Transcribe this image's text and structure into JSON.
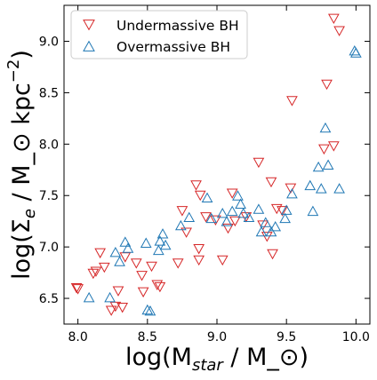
{
  "chart_data": {
    "type": "scatter",
    "title": "",
    "xlabel": "log(M_star / M_⊙)",
    "ylabel": "log(Σ_e / M_⊙ kpc^-2)",
    "xlim": [
      7.9,
      10.1
    ],
    "ylim": [
      6.25,
      9.35
    ],
    "x_ticks": [
      "8.0",
      "8.5",
      "9.0",
      "9.5",
      "10.0"
    ],
    "y_ticks": [
      "6.5",
      "7.0",
      "7.5",
      "8.0",
      "8.5",
      "9.0"
    ],
    "grid": false,
    "legend": "upper-left",
    "series": [
      {
        "name": "Undermassive BH",
        "color": "#d62728",
        "marker": "triangle-down",
        "points": [
          [
            7.99,
            6.6
          ],
          [
            8.0,
            6.59
          ],
          [
            8.11,
            6.74
          ],
          [
            8.13,
            6.76
          ],
          [
            8.19,
            6.8
          ],
          [
            8.16,
            6.94
          ],
          [
            8.24,
            6.38
          ],
          [
            8.27,
            6.42
          ],
          [
            8.32,
            6.41
          ],
          [
            8.29,
            6.57
          ],
          [
            8.34,
            6.9
          ],
          [
            8.42,
            6.84
          ],
          [
            8.46,
            6.72
          ],
          [
            8.47,
            6.56
          ],
          [
            8.53,
            6.81
          ],
          [
            8.57,
            6.63
          ],
          [
            8.59,
            6.61
          ],
          [
            8.72,
            6.84
          ],
          [
            8.75,
            7.35
          ],
          [
            8.78,
            7.14
          ],
          [
            8.85,
            7.6
          ],
          [
            8.87,
            6.87
          ],
          [
            8.88,
            7.5
          ],
          [
            8.92,
            7.29
          ],
          [
            8.87,
            6.98
          ],
          [
            8.99,
            7.26
          ],
          [
            9.04,
            6.87
          ],
          [
            9.08,
            7.18
          ],
          [
            9.11,
            7.52
          ],
          [
            9.13,
            7.25
          ],
          [
            9.21,
            7.29
          ],
          [
            9.3,
            7.82
          ],
          [
            9.33,
            7.21
          ],
          [
            9.36,
            7.1
          ],
          [
            9.39,
            7.63
          ],
          [
            9.4,
            6.93
          ],
          [
            9.43,
            7.37
          ],
          [
            9.47,
            7.35
          ],
          [
            9.53,
            7.57
          ],
          [
            9.54,
            8.42
          ],
          [
            9.77,
            7.95
          ],
          [
            9.79,
            8.58
          ],
          [
            9.84,
            7.98
          ],
          [
            9.84,
            9.22
          ],
          [
            9.88,
            9.1
          ]
        ]
      },
      {
        "name": "Overmassive BH",
        "color": "#1f77b4",
        "marker": "triangle-up",
        "points": [
          [
            8.08,
            6.51
          ],
          [
            8.23,
            6.51
          ],
          [
            8.27,
            6.95
          ],
          [
            8.3,
            6.86
          ],
          [
            8.34,
            7.05
          ],
          [
            8.36,
            6.99
          ],
          [
            8.5,
            6.39
          ],
          [
            8.49,
            7.04
          ],
          [
            8.52,
            6.38
          ],
          [
            8.58,
            6.97
          ],
          [
            8.59,
            7.06
          ],
          [
            8.61,
            7.13
          ],
          [
            8.63,
            7.02
          ],
          [
            8.74,
            7.21
          ],
          [
            8.8,
            7.29
          ],
          [
            8.93,
            7.48
          ],
          [
            8.96,
            7.28
          ],
          [
            9.04,
            7.33
          ],
          [
            9.07,
            7.25
          ],
          [
            9.11,
            7.35
          ],
          [
            9.15,
            7.5
          ],
          [
            9.17,
            7.42
          ],
          [
            9.19,
            7.33
          ],
          [
            9.23,
            7.29
          ],
          [
            9.3,
            7.37
          ],
          [
            9.32,
            7.15
          ],
          [
            9.35,
            7.24
          ],
          [
            9.39,
            7.15
          ],
          [
            9.42,
            7.2
          ],
          [
            9.49,
            7.28
          ],
          [
            9.5,
            7.36
          ],
          [
            9.54,
            7.52
          ],
          [
            9.67,
            7.6
          ],
          [
            9.69,
            7.35
          ],
          [
            9.73,
            7.78
          ],
          [
            9.75,
            7.57
          ],
          [
            9.78,
            8.16
          ],
          [
            9.8,
            7.8
          ],
          [
            9.88,
            7.57
          ],
          [
            9.99,
            8.91
          ],
          [
            10.0,
            8.89
          ]
        ]
      }
    ]
  }
}
